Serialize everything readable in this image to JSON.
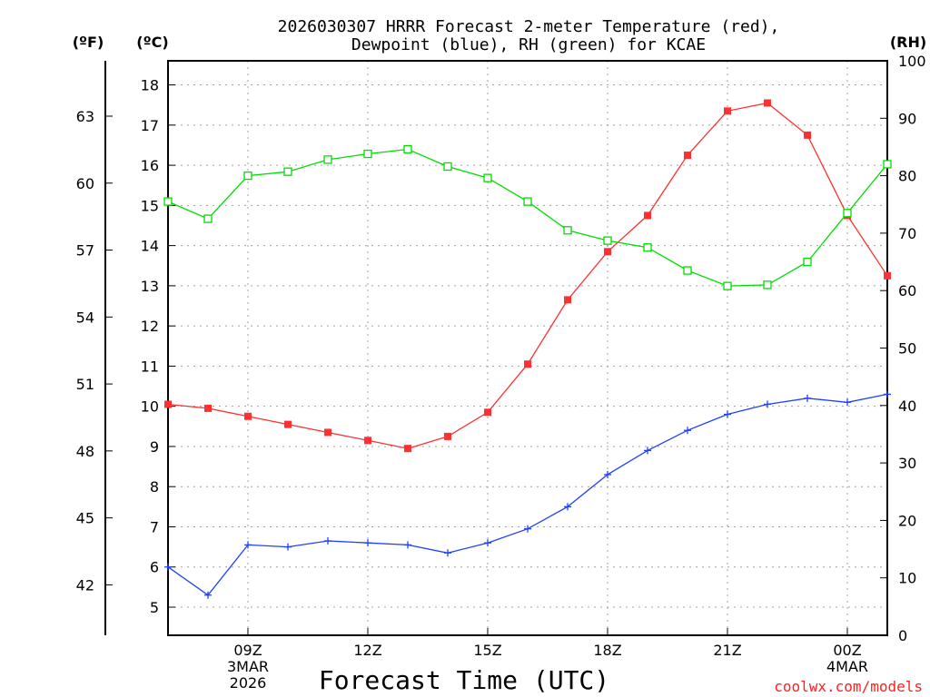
{
  "chart_data": {
    "type": "line",
    "title_line1": "2026030307 HRRR Forecast 2-meter Temperature (red),",
    "title_line2": "Dewpoint (blue), RH (green) for KCAE",
    "xlabel": "Forecast Time (UTC)",
    "credit": "coolwx.com/models",
    "left_unit_f": "(ºF)",
    "left_unit_c": "(ºC)",
    "right_unit": "(RH)",
    "x_hours": [
      7,
      8,
      9,
      10,
      11,
      12,
      13,
      14,
      15,
      16,
      17,
      18,
      19,
      20,
      21,
      22,
      23,
      24,
      25
    ],
    "x_range": [
      7,
      25
    ],
    "x_ticks": [
      {
        "hour": 9,
        "lines": [
          "09Z",
          "3MAR",
          "2026"
        ]
      },
      {
        "hour": 12,
        "lines": [
          "12Z"
        ]
      },
      {
        "hour": 15,
        "lines": [
          "15Z"
        ]
      },
      {
        "hour": 18,
        "lines": [
          "18Z"
        ]
      },
      {
        "hour": 21,
        "lines": [
          "21Z"
        ]
      },
      {
        "hour": 24,
        "lines": [
          "00Z",
          "4MAR"
        ]
      }
    ],
    "ylim_c": [
      4.3,
      18.6
    ],
    "ylim_rh": [
      0,
      100
    ],
    "yticks_c": [
      "5",
      "6",
      "7",
      "8",
      "9",
      "10",
      "11",
      "12",
      "13",
      "14",
      "15",
      "16",
      "17",
      "18"
    ],
    "yticks_f": [
      "42",
      "45",
      "48",
      "51",
      "54",
      "57",
      "60",
      "63"
    ],
    "yticks_rh": [
      "0",
      "10",
      "20",
      "30",
      "40",
      "50",
      "60",
      "70",
      "80",
      "90",
      "100"
    ],
    "series": [
      {
        "name": "Temperature",
        "unit": "C",
        "color": "#ff3030",
        "marker": "filled-square",
        "values": [
          10.05,
          9.95,
          9.75,
          9.55,
          9.35,
          9.15,
          8.95,
          9.25,
          9.85,
          11.05,
          12.65,
          13.85,
          14.75,
          16.25,
          17.35,
          17.55,
          16.75,
          14.75,
          13.25
        ]
      },
      {
        "name": "Dewpoint",
        "unit": "C",
        "color": "#2040ff",
        "marker": "plus",
        "values": [
          6.0,
          5.3,
          6.55,
          6.5,
          6.65,
          6.6,
          6.55,
          6.35,
          6.6,
          6.95,
          7.5,
          8.3,
          8.9,
          9.4,
          9.8,
          10.05,
          10.2,
          10.1,
          10.3
        ]
      },
      {
        "name": "RH",
        "unit": "%",
        "color": "#00dd00",
        "marker": "open-square",
        "values": [
          75.5,
          72.5,
          80.0,
          80.7,
          82.8,
          83.8,
          84.6,
          81.6,
          79.6,
          75.5,
          70.5,
          68.7,
          67.5,
          63.5,
          60.8,
          61.0,
          65.0,
          73.5,
          82.0
        ]
      }
    ]
  }
}
